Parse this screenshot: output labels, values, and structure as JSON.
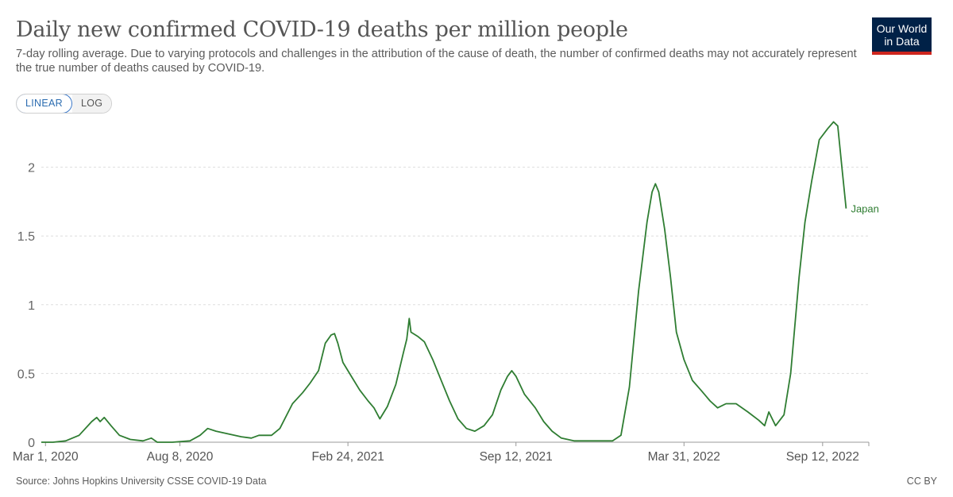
{
  "header": {
    "title": "Daily new confirmed COVID-19 deaths per million people",
    "subtitle": "7-day rolling average. Due to varying protocols and challenges in the attribution of the cause of death, the number of confirmed deaths may not accurately represent the true number of deaths caused by COVID-19."
  },
  "logo": {
    "line1": "Our World",
    "line2": "in Data"
  },
  "scale_toggle": {
    "linear_label": "LINEAR",
    "log_label": "LOG",
    "selected": "linear"
  },
  "footer": {
    "source": "Source: Johns Hopkins University CSSE COVID-19 Data",
    "license": "CC BY"
  },
  "colors": {
    "series": "#2f7d32",
    "grid": "#dddddd",
    "axis": "#999999",
    "text": "#5b5b5b"
  },
  "chart_data": {
    "type": "line",
    "title": "Daily new confirmed COVID-19 deaths per million people",
    "xlabel": "",
    "ylabel": "",
    "ylim": [
      0,
      2.35
    ],
    "xlim": [
      "2020-02-25",
      "2022-11-06"
    ],
    "grid": true,
    "y_ticks": [
      0,
      0.5,
      1,
      1.5,
      2
    ],
    "y_tick_labels": [
      "0",
      "0.5",
      "1",
      "1.5",
      "2"
    ],
    "x_ticks": [
      "2020-03-01",
      "2020-08-08",
      "2021-02-24",
      "2021-09-12",
      "2022-03-31",
      "2022-09-12"
    ],
    "x_tick_labels": [
      "Mar 1, 2020",
      "Aug 8, 2020",
      "Feb 24, 2021",
      "Sep 12, 2021",
      "Mar 31, 2022",
      "Sep 12, 2022"
    ],
    "series": [
      {
        "name": "Japan",
        "color": "#2f7d32",
        "points": [
          [
            "2020-02-25",
            0.0
          ],
          [
            "2020-03-10",
            0.0
          ],
          [
            "2020-03-25",
            0.01
          ],
          [
            "2020-04-10",
            0.05
          ],
          [
            "2020-04-25",
            0.15
          ],
          [
            "2020-05-01",
            0.18
          ],
          [
            "2020-05-05",
            0.15
          ],
          [
            "2020-05-10",
            0.18
          ],
          [
            "2020-05-18",
            0.12
          ],
          [
            "2020-05-28",
            0.05
          ],
          [
            "2020-06-10",
            0.02
          ],
          [
            "2020-06-25",
            0.01
          ],
          [
            "2020-07-05",
            0.03
          ],
          [
            "2020-07-12",
            0.0
          ],
          [
            "2020-07-30",
            0.0
          ],
          [
            "2020-08-20",
            0.01
          ],
          [
            "2020-09-01",
            0.05
          ],
          [
            "2020-09-10",
            0.1
          ],
          [
            "2020-09-20",
            0.08
          ],
          [
            "2020-10-05",
            0.06
          ],
          [
            "2020-10-20",
            0.04
          ],
          [
            "2020-11-01",
            0.03
          ],
          [
            "2020-11-10",
            0.05
          ],
          [
            "2020-11-25",
            0.05
          ],
          [
            "2020-12-05",
            0.1
          ],
          [
            "2020-12-20",
            0.28
          ],
          [
            "2021-01-01",
            0.36
          ],
          [
            "2021-01-10",
            0.43
          ],
          [
            "2021-01-20",
            0.52
          ],
          [
            "2021-01-28",
            0.72
          ],
          [
            "2021-02-04",
            0.78
          ],
          [
            "2021-02-08",
            0.79
          ],
          [
            "2021-02-12",
            0.72
          ],
          [
            "2021-02-18",
            0.58
          ],
          [
            "2021-03-01",
            0.47
          ],
          [
            "2021-03-10",
            0.38
          ],
          [
            "2021-03-20",
            0.3
          ],
          [
            "2021-03-27",
            0.25
          ],
          [
            "2021-04-03",
            0.17
          ],
          [
            "2021-04-12",
            0.26
          ],
          [
            "2021-04-22",
            0.42
          ],
          [
            "2021-05-01",
            0.65
          ],
          [
            "2021-05-05",
            0.75
          ],
          [
            "2021-05-08",
            0.9
          ],
          [
            "2021-05-10",
            0.8
          ],
          [
            "2021-05-18",
            0.77
          ],
          [
            "2021-05-26",
            0.73
          ],
          [
            "2021-06-05",
            0.6
          ],
          [
            "2021-06-15",
            0.45
          ],
          [
            "2021-06-25",
            0.3
          ],
          [
            "2021-07-05",
            0.17
          ],
          [
            "2021-07-15",
            0.1
          ],
          [
            "2021-07-25",
            0.08
          ],
          [
            "2021-08-05",
            0.12
          ],
          [
            "2021-08-15",
            0.2
          ],
          [
            "2021-08-25",
            0.38
          ],
          [
            "2021-09-02",
            0.48
          ],
          [
            "2021-09-07",
            0.52
          ],
          [
            "2021-09-12",
            0.48
          ],
          [
            "2021-09-22",
            0.35
          ],
          [
            "2021-10-05",
            0.25
          ],
          [
            "2021-10-15",
            0.15
          ],
          [
            "2021-10-25",
            0.08
          ],
          [
            "2021-11-05",
            0.03
          ],
          [
            "2021-11-20",
            0.01
          ],
          [
            "2021-12-10",
            0.01
          ],
          [
            "2022-01-05",
            0.01
          ],
          [
            "2022-01-15",
            0.05
          ],
          [
            "2022-01-25",
            0.4
          ],
          [
            "2022-02-05",
            1.1
          ],
          [
            "2022-02-15",
            1.6
          ],
          [
            "2022-02-21",
            1.82
          ],
          [
            "2022-02-25",
            1.88
          ],
          [
            "2022-03-01",
            1.82
          ],
          [
            "2022-03-08",
            1.55
          ],
          [
            "2022-03-15",
            1.2
          ],
          [
            "2022-03-22",
            0.8
          ],
          [
            "2022-03-31",
            0.6
          ],
          [
            "2022-04-10",
            0.45
          ],
          [
            "2022-04-20",
            0.38
          ],
          [
            "2022-05-01",
            0.3
          ],
          [
            "2022-05-10",
            0.25
          ],
          [
            "2022-05-20",
            0.28
          ],
          [
            "2022-06-01",
            0.28
          ],
          [
            "2022-06-15",
            0.22
          ],
          [
            "2022-06-28",
            0.16
          ],
          [
            "2022-07-05",
            0.12
          ],
          [
            "2022-07-10",
            0.22
          ],
          [
            "2022-07-18",
            0.12
          ],
          [
            "2022-07-28",
            0.2
          ],
          [
            "2022-08-05",
            0.5
          ],
          [
            "2022-08-15",
            1.2
          ],
          [
            "2022-08-22",
            1.6
          ],
          [
            "2022-08-30",
            1.9
          ],
          [
            "2022-09-08",
            2.2
          ],
          [
            "2022-09-18",
            2.28
          ],
          [
            "2022-09-25",
            2.33
          ],
          [
            "2022-09-30",
            2.3
          ],
          [
            "2022-10-05",
            2.0
          ],
          [
            "2022-10-10",
            1.7
          ]
        ]
      }
    ]
  }
}
